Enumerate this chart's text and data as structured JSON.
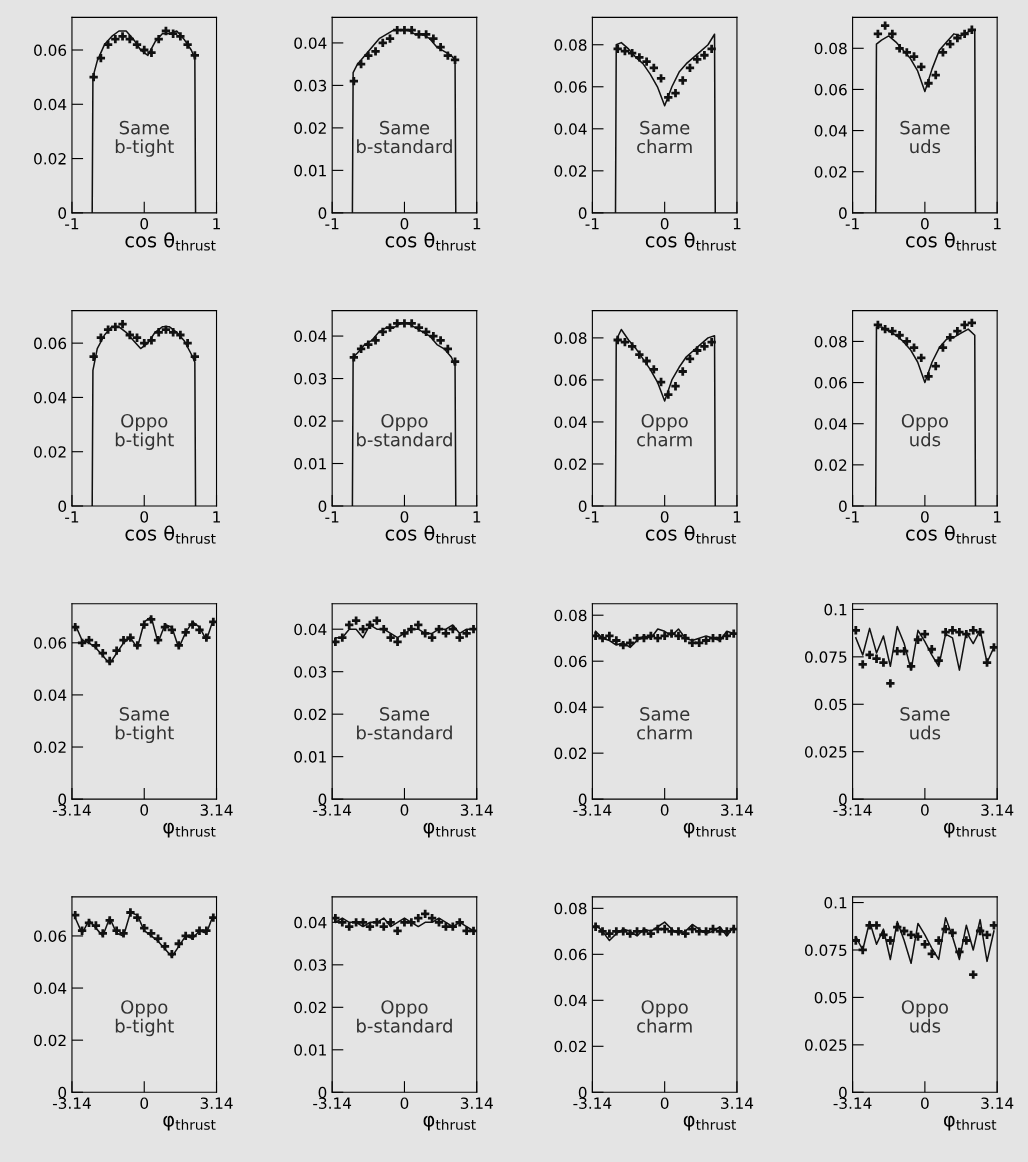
{
  "chart_data": [
    {
      "type": "line",
      "xlabel": "cos θ$_{thrust}$",
      "xlim": [
        -1,
        1
      ],
      "xticks": [
        -1,
        0,
        1
      ],
      "ylim": [
        0,
        0.072
      ],
      "yticks": [
        0,
        0.02,
        0.04,
        0.06
      ],
      "annotations": [
        "Same\nb-tight"
      ],
      "series": [
        {
          "type": "line",
          "color": "#111111",
          "x": [
            -0.72,
            -0.71,
            -0.65,
            -0.55,
            -0.45,
            -0.35,
            -0.25,
            -0.15,
            -0.05,
            0.05,
            0.15,
            0.25,
            0.35,
            0.45,
            0.55,
            0.65,
            0.7,
            0.71
          ],
          "values": [
            0,
            0.05,
            0.056,
            0.062,
            0.065,
            0.067,
            0.067,
            0.064,
            0.06,
            0.058,
            0.063,
            0.066,
            0.066,
            0.067,
            0.064,
            0.06,
            0.057,
            0
          ]
        },
        {
          "type": "scatter",
          "marker": "cross",
          "color": "#111111",
          "x": [
            -0.7,
            -0.6,
            -0.5,
            -0.4,
            -0.3,
            -0.2,
            -0.1,
            0,
            0.1,
            0.2,
            0.3,
            0.4,
            0.5,
            0.6,
            0.7
          ],
          "values": [
            0.05,
            0.057,
            0.062,
            0.064,
            0.065,
            0.064,
            0.062,
            0.06,
            0.059,
            0.064,
            0.067,
            0.066,
            0.065,
            0.062,
            0.058
          ]
        }
      ]
    },
    {
      "type": "line",
      "xlabel": "cos θ$_{thrust}$",
      "xlim": [
        -1,
        1
      ],
      "xticks": [
        -1,
        0,
        1
      ],
      "ylim": [
        0,
        0.072
      ],
      "yticks": [
        0,
        0.02,
        0.04,
        0.06
      ],
      "annotations": [
        "Oppo\nb-tight"
      ],
      "series": [
        {
          "type": "line",
          "color": "#111111",
          "x": [
            -0.72,
            -0.71,
            -0.65,
            -0.55,
            -0.45,
            -0.35,
            -0.25,
            -0.15,
            -0.05,
            0.05,
            0.15,
            0.25,
            0.35,
            0.45,
            0.55,
            0.65,
            0.7,
            0.71
          ],
          "values": [
            0,
            0.05,
            0.058,
            0.063,
            0.066,
            0.066,
            0.064,
            0.061,
            0.058,
            0.06,
            0.064,
            0.066,
            0.066,
            0.064,
            0.061,
            0.056,
            0.053,
            0
          ]
        },
        {
          "type": "scatter",
          "marker": "cross",
          "color": "#111111",
          "x": [
            -0.7,
            -0.6,
            -0.5,
            -0.4,
            -0.3,
            -0.2,
            -0.1,
            0,
            0.1,
            0.2,
            0.3,
            0.4,
            0.5,
            0.6,
            0.7
          ],
          "values": [
            0.055,
            0.062,
            0.065,
            0.066,
            0.067,
            0.063,
            0.062,
            0.06,
            0.061,
            0.064,
            0.065,
            0.064,
            0.063,
            0.06,
            0.055
          ]
        }
      ]
    },
    {
      "type": "line",
      "xlabel": "φ$_{thrust}$",
      "xlim": [
        -3.14,
        3.14
      ],
      "xticks": [
        -3.14,
        0,
        3.14
      ],
      "ylim": [
        0,
        0.075
      ],
      "yticks": [
        0,
        0.02,
        0.04,
        0.06
      ],
      "annotations": [
        "Same\nb-tight"
      ],
      "series": [
        {
          "type": "line",
          "color": "#111111",
          "x": [
            -3.0,
            -2.7,
            -2.4,
            -2.1,
            -1.8,
            -1.5,
            -1.2,
            -0.9,
            -0.6,
            -0.3,
            0,
            0.3,
            0.6,
            0.9,
            1.2,
            1.5,
            1.8,
            2.1,
            2.4,
            2.7,
            3.0
          ],
          "values": [
            0.067,
            0.061,
            0.06,
            0.058,
            0.055,
            0.052,
            0.056,
            0.06,
            0.062,
            0.058,
            0.068,
            0.07,
            0.06,
            0.067,
            0.066,
            0.058,
            0.064,
            0.068,
            0.066,
            0.061,
            0.069
          ]
        },
        {
          "type": "scatter",
          "marker": "cross",
          "color": "#111111",
          "x": [
            -3.0,
            -2.7,
            -2.4,
            -2.1,
            -1.8,
            -1.5,
            -1.2,
            -0.9,
            -0.6,
            -0.3,
            0,
            0.3,
            0.6,
            0.9,
            1.2,
            1.5,
            1.8,
            2.1,
            2.4,
            2.7,
            3.0
          ],
          "values": [
            0.066,
            0.06,
            0.061,
            0.059,
            0.056,
            0.053,
            0.057,
            0.061,
            0.062,
            0.059,
            0.067,
            0.069,
            0.061,
            0.066,
            0.065,
            0.059,
            0.064,
            0.067,
            0.065,
            0.062,
            0.068
          ]
        }
      ]
    },
    {
      "type": "line",
      "xlabel": "φ$_{thrust}$",
      "xlim": [
        -3.14,
        3.14
      ],
      "xticks": [
        -3.14,
        0,
        3.14
      ],
      "ylim": [
        0,
        0.075
      ],
      "yticks": [
        0,
        0.02,
        0.04,
        0.06
      ],
      "annotations": [
        "Oppo\nb-tight"
      ],
      "series": [
        {
          "type": "line",
          "color": "#111111",
          "x": [
            -3.0,
            -2.7,
            -2.4,
            -2.1,
            -1.8,
            -1.5,
            -1.2,
            -0.9,
            -0.6,
            -0.3,
            0,
            0.3,
            0.6,
            0.9,
            1.2,
            1.5,
            1.8,
            2.1,
            2.4,
            2.7,
            3.0
          ],
          "values": [
            0.067,
            0.061,
            0.066,
            0.063,
            0.06,
            0.067,
            0.061,
            0.06,
            0.069,
            0.068,
            0.062,
            0.06,
            0.058,
            0.055,
            0.052,
            0.056,
            0.06,
            0.059,
            0.062,
            0.061,
            0.068
          ]
        },
        {
          "type": "scatter",
          "marker": "cross",
          "color": "#111111",
          "x": [
            -3.0,
            -2.7,
            -2.4,
            -2.1,
            -1.8,
            -1.5,
            -1.2,
            -0.9,
            -0.6,
            -0.3,
            0,
            0.3,
            0.6,
            0.9,
            1.2,
            1.5,
            1.8,
            2.1,
            2.4,
            2.7,
            3.0
          ],
          "values": [
            0.068,
            0.062,
            0.065,
            0.064,
            0.061,
            0.066,
            0.062,
            0.061,
            0.069,
            0.067,
            0.063,
            0.061,
            0.059,
            0.056,
            0.053,
            0.057,
            0.06,
            0.06,
            0.062,
            0.062,
            0.067
          ]
        }
      ]
    },
    {
      "type": "line",
      "xlabel": "cos θ$_{thrust}$",
      "xlim": [
        -1,
        1
      ],
      "xticks": [
        -1,
        0,
        1
      ],
      "ylim": [
        0,
        0.046
      ],
      "yticks": [
        0,
        0.01,
        0.02,
        0.03,
        0.04
      ],
      "annotations": [
        "Same\nb-standard"
      ],
      "series": [
        {
          "type": "line",
          "color": "#111111",
          "x": [
            -0.72,
            -0.71,
            -0.65,
            -0.55,
            -0.45,
            -0.35,
            -0.25,
            -0.15,
            -0.05,
            0.05,
            0.15,
            0.25,
            0.35,
            0.45,
            0.55,
            0.65,
            0.7,
            0.71
          ],
          "values": [
            0,
            0.033,
            0.035,
            0.037,
            0.039,
            0.041,
            0.042,
            0.043,
            0.043,
            0.043,
            0.042,
            0.042,
            0.041,
            0.039,
            0.038,
            0.037,
            0.036,
            0
          ]
        },
        {
          "type": "scatter",
          "marker": "cross",
          "color": "#111111",
          "x": [
            -0.7,
            -0.6,
            -0.5,
            -0.4,
            -0.3,
            -0.2,
            -0.1,
            0,
            0.1,
            0.2,
            0.3,
            0.4,
            0.5,
            0.6,
            0.7
          ],
          "values": [
            0.031,
            0.035,
            0.037,
            0.038,
            0.04,
            0.041,
            0.043,
            0.043,
            0.043,
            0.042,
            0.042,
            0.041,
            0.039,
            0.037,
            0.036
          ]
        }
      ]
    },
    {
      "type": "line",
      "xlabel": "cos θ$_{thrust}$",
      "xlim": [
        -1,
        1
      ],
      "xticks": [
        -1,
        0,
        1
      ],
      "ylim": [
        0,
        0.046
      ],
      "yticks": [
        0,
        0.01,
        0.02,
        0.03,
        0.04
      ],
      "annotations": [
        "Oppo\nb-standard"
      ],
      "series": [
        {
          "type": "line",
          "color": "#111111",
          "x": [
            -0.72,
            -0.71,
            -0.65,
            -0.55,
            -0.45,
            -0.35,
            -0.25,
            -0.15,
            -0.05,
            0.05,
            0.15,
            0.25,
            0.35,
            0.45,
            0.55,
            0.65,
            0.7,
            0.71
          ],
          "values": [
            0,
            0.035,
            0.036,
            0.038,
            0.039,
            0.041,
            0.042,
            0.042,
            0.043,
            0.043,
            0.042,
            0.041,
            0.04,
            0.038,
            0.037,
            0.035,
            0.033,
            0
          ]
        },
        {
          "type": "scatter",
          "marker": "cross",
          "color": "#111111",
          "x": [
            -0.7,
            -0.6,
            -0.5,
            -0.4,
            -0.3,
            -0.2,
            -0.1,
            0,
            0.1,
            0.2,
            0.3,
            0.4,
            0.5,
            0.6,
            0.7
          ],
          "values": [
            0.035,
            0.037,
            0.038,
            0.039,
            0.041,
            0.042,
            0.043,
            0.043,
            0.043,
            0.042,
            0.041,
            0.04,
            0.039,
            0.037,
            0.034
          ]
        }
      ]
    },
    {
      "type": "line",
      "xlabel": "φ$_{thrust}$",
      "xlim": [
        -3.14,
        3.14
      ],
      "xticks": [
        -3.14,
        0,
        3.14
      ],
      "ylim": [
        0,
        0.046
      ],
      "yticks": [
        0,
        0.01,
        0.02,
        0.03,
        0.04
      ],
      "annotations": [
        "Same\nb-standard"
      ],
      "series": [
        {
          "type": "line",
          "color": "#111111",
          "x": [
            -3.0,
            -2.7,
            -2.4,
            -2.1,
            -1.8,
            -1.5,
            -1.2,
            -0.9,
            -0.6,
            -0.3,
            0,
            0.3,
            0.6,
            0.9,
            1.2,
            1.5,
            1.8,
            2.1,
            2.4,
            2.7,
            3.0
          ],
          "values": [
            0.038,
            0.038,
            0.04,
            0.04,
            0.038,
            0.041,
            0.04,
            0.04,
            0.039,
            0.038,
            0.039,
            0.04,
            0.04,
            0.039,
            0.039,
            0.04,
            0.04,
            0.041,
            0.039,
            0.04,
            0.04
          ]
        },
        {
          "type": "scatter",
          "marker": "cross",
          "color": "#111111",
          "x": [
            -3.0,
            -2.7,
            -2.4,
            -2.1,
            -1.8,
            -1.5,
            -1.2,
            -0.9,
            -0.6,
            -0.3,
            0,
            0.3,
            0.6,
            0.9,
            1.2,
            1.5,
            1.8,
            2.1,
            2.4,
            2.7,
            3.0
          ],
          "values": [
            0.037,
            0.038,
            0.041,
            0.042,
            0.04,
            0.041,
            0.042,
            0.04,
            0.038,
            0.037,
            0.039,
            0.04,
            0.041,
            0.039,
            0.038,
            0.04,
            0.039,
            0.04,
            0.038,
            0.039,
            0.04
          ]
        }
      ]
    },
    {
      "type": "line",
      "xlabel": "φ$_{thrust}$",
      "xlim": [
        -3.14,
        3.14
      ],
      "xticks": [
        -3.14,
        0,
        3.14
      ],
      "ylim": [
        0,
        0.046
      ],
      "yticks": [
        0,
        0.01,
        0.02,
        0.03,
        0.04
      ],
      "annotations": [
        "Oppo\nb-standard"
      ],
      "series": [
        {
          "type": "line",
          "color": "#111111",
          "x": [
            -3.0,
            -2.7,
            -2.4,
            -2.1,
            -1.8,
            -1.5,
            -1.2,
            -0.9,
            -0.6,
            -0.3,
            0,
            0.3,
            0.6,
            0.9,
            1.2,
            1.5,
            1.8,
            2.1,
            2.4,
            2.7,
            3.0
          ],
          "values": [
            0.04,
            0.041,
            0.04,
            0.04,
            0.039,
            0.04,
            0.04,
            0.041,
            0.039,
            0.04,
            0.041,
            0.04,
            0.039,
            0.04,
            0.04,
            0.041,
            0.04,
            0.039,
            0.04,
            0.039,
            0.038
          ]
        },
        {
          "type": "scatter",
          "marker": "cross",
          "color": "#111111",
          "x": [
            -3.0,
            -2.7,
            -2.4,
            -2.1,
            -1.8,
            -1.5,
            -1.2,
            -0.9,
            -0.6,
            -0.3,
            0,
            0.3,
            0.6,
            0.9,
            1.2,
            1.5,
            1.8,
            2.1,
            2.4,
            2.7,
            3.0
          ],
          "values": [
            0.041,
            0.04,
            0.039,
            0.04,
            0.04,
            0.039,
            0.04,
            0.039,
            0.04,
            0.038,
            0.04,
            0.04,
            0.041,
            0.042,
            0.041,
            0.04,
            0.039,
            0.039,
            0.04,
            0.038,
            0.038
          ]
        }
      ]
    },
    {
      "type": "line",
      "xlabel": "cos θ$_{thrust}$",
      "xlim": [
        -1,
        1
      ],
      "xticks": [
        -1,
        0,
        1
      ],
      "ylim": [
        0,
        0.093
      ],
      "yticks": [
        0,
        0.02,
        0.04,
        0.06,
        0.08
      ],
      "annotations": [
        "Same\ncharm"
      ],
      "series": [
        {
          "type": "line",
          "color": "#111111",
          "x": [
            -0.68,
            -0.67,
            -0.6,
            -0.5,
            -0.4,
            -0.3,
            -0.2,
            -0.1,
            0,
            0.1,
            0.2,
            0.3,
            0.4,
            0.5,
            0.6,
            0.69,
            0.7
          ],
          "values": [
            0,
            0.08,
            0.081,
            0.078,
            0.074,
            0.071,
            0.066,
            0.06,
            0.051,
            0.06,
            0.067,
            0.071,
            0.074,
            0.077,
            0.08,
            0.085,
            0
          ]
        },
        {
          "type": "scatter",
          "marker": "cross",
          "color": "#111111",
          "x": [
            -0.65,
            -0.55,
            -0.45,
            -0.35,
            -0.25,
            -0.15,
            -0.05,
            0.05,
            0.15,
            0.25,
            0.35,
            0.45,
            0.55,
            0.65
          ],
          "values": [
            0.078,
            0.077,
            0.076,
            0.074,
            0.072,
            0.069,
            0.064,
            0.055,
            0.057,
            0.063,
            0.069,
            0.073,
            0.075,
            0.078
          ]
        }
      ]
    },
    {
      "type": "line",
      "xlabel": "cos θ$_{thrust}$",
      "xlim": [
        -1,
        1
      ],
      "xticks": [
        -1,
        0,
        1
      ],
      "ylim": [
        0,
        0.093
      ],
      "yticks": [
        0,
        0.02,
        0.04,
        0.06,
        0.08
      ],
      "annotations": [
        "Oppo\ncharm"
      ],
      "series": [
        {
          "type": "line",
          "color": "#111111",
          "x": [
            -0.68,
            -0.67,
            -0.6,
            -0.5,
            -0.4,
            -0.3,
            -0.2,
            -0.1,
            0,
            0.1,
            0.2,
            0.3,
            0.4,
            0.5,
            0.6,
            0.69,
            0.7
          ],
          "values": [
            0,
            0.079,
            0.084,
            0.079,
            0.075,
            0.07,
            0.065,
            0.059,
            0.05,
            0.06,
            0.066,
            0.071,
            0.074,
            0.077,
            0.08,
            0.081,
            0
          ]
        },
        {
          "type": "scatter",
          "marker": "cross",
          "color": "#111111",
          "x": [
            -0.65,
            -0.55,
            -0.45,
            -0.35,
            -0.25,
            -0.15,
            -0.05,
            0.05,
            0.15,
            0.25,
            0.35,
            0.45,
            0.55,
            0.65
          ],
          "values": [
            0.079,
            0.078,
            0.076,
            0.072,
            0.069,
            0.065,
            0.059,
            0.053,
            0.057,
            0.064,
            0.07,
            0.074,
            0.076,
            0.078
          ]
        }
      ]
    },
    {
      "type": "line",
      "xlabel": "φ$_{thrust}$",
      "xlim": [
        -3.14,
        3.14
      ],
      "xticks": [
        -3.14,
        0,
        3.14
      ],
      "ylim": [
        0,
        0.085
      ],
      "yticks": [
        0,
        0.02,
        0.04,
        0.06,
        0.08
      ],
      "annotations": [
        "Same\ncharm"
      ],
      "series": [
        {
          "type": "line",
          "color": "#111111",
          "x": [
            -3.0,
            -2.7,
            -2.4,
            -2.1,
            -1.8,
            -1.5,
            -1.2,
            -0.9,
            -0.6,
            -0.3,
            0,
            0.3,
            0.6,
            0.9,
            1.2,
            1.5,
            1.8,
            2.1,
            2.4,
            2.7,
            3.0
          ],
          "values": [
            0.073,
            0.07,
            0.069,
            0.067,
            0.068,
            0.066,
            0.069,
            0.071,
            0.07,
            0.074,
            0.073,
            0.071,
            0.074,
            0.07,
            0.069,
            0.07,
            0.071,
            0.07,
            0.069,
            0.073,
            0.072
          ]
        },
        {
          "type": "scatter",
          "marker": "cross",
          "color": "#111111",
          "x": [
            -3.0,
            -2.7,
            -2.4,
            -2.1,
            -1.8,
            -1.5,
            -1.2,
            -0.9,
            -0.6,
            -0.3,
            0,
            0.3,
            0.6,
            0.9,
            1.2,
            1.5,
            1.8,
            2.1,
            2.4,
            2.7,
            3.0
          ],
          "values": [
            0.071,
            0.07,
            0.071,
            0.069,
            0.067,
            0.068,
            0.07,
            0.07,
            0.071,
            0.07,
            0.071,
            0.072,
            0.071,
            0.07,
            0.068,
            0.068,
            0.069,
            0.07,
            0.07,
            0.071,
            0.072
          ]
        }
      ]
    },
    {
      "type": "line",
      "xlabel": "φ$_{thrust}$",
      "xlim": [
        -3.14,
        3.14
      ],
      "xticks": [
        -3.14,
        0,
        3.14
      ],
      "ylim": [
        0,
        0.085
      ],
      "yticks": [
        0,
        0.02,
        0.04,
        0.06,
        0.08
      ],
      "annotations": [
        "Oppo\ncharm"
      ],
      "series": [
        {
          "type": "line",
          "color": "#111111",
          "x": [
            -3.0,
            -2.7,
            -2.4,
            -2.1,
            -1.8,
            -1.5,
            -1.2,
            -0.9,
            -0.6,
            -0.3,
            0,
            0.3,
            0.6,
            0.9,
            1.2,
            1.5,
            1.8,
            2.1,
            2.4,
            2.7,
            3.0
          ],
          "values": [
            0.073,
            0.07,
            0.066,
            0.069,
            0.071,
            0.07,
            0.068,
            0.071,
            0.07,
            0.072,
            0.074,
            0.071,
            0.069,
            0.07,
            0.073,
            0.071,
            0.069,
            0.07,
            0.072,
            0.068,
            0.072
          ]
        },
        {
          "type": "scatter",
          "marker": "cross",
          "color": "#111111",
          "x": [
            -3.0,
            -2.7,
            -2.4,
            -2.1,
            -1.8,
            -1.5,
            -1.2,
            -0.9,
            -0.6,
            -0.3,
            0,
            0.3,
            0.6,
            0.9,
            1.2,
            1.5,
            1.8,
            2.1,
            2.4,
            2.7,
            3.0
          ],
          "values": [
            0.072,
            0.07,
            0.069,
            0.07,
            0.07,
            0.069,
            0.07,
            0.07,
            0.069,
            0.071,
            0.071,
            0.07,
            0.07,
            0.069,
            0.071,
            0.07,
            0.07,
            0.071,
            0.07,
            0.07,
            0.071
          ]
        }
      ]
    },
    {
      "type": "line",
      "xlabel": "cos θ$_{thrust}$",
      "xlim": [
        -1,
        1
      ],
      "xticks": [
        -1,
        0,
        1
      ],
      "ylim": [
        0,
        0.095
      ],
      "yticks": [
        0,
        0.02,
        0.04,
        0.06,
        0.08
      ],
      "annotations": [
        "Same\nuds"
      ],
      "series": [
        {
          "type": "line",
          "color": "#111111",
          "x": [
            -0.68,
            -0.67,
            -0.6,
            -0.5,
            -0.4,
            -0.3,
            -0.2,
            -0.1,
            0,
            0.1,
            0.2,
            0.3,
            0.4,
            0.5,
            0.6,
            0.69,
            0.7
          ],
          "values": [
            0,
            0.082,
            0.084,
            0.086,
            0.083,
            0.079,
            0.075,
            0.069,
            0.059,
            0.07,
            0.079,
            0.083,
            0.087,
            0.086,
            0.088,
            0.089,
            0
          ]
        },
        {
          "type": "scatter",
          "marker": "cross",
          "color": "#111111",
          "x": [
            -0.65,
            -0.55,
            -0.45,
            -0.35,
            -0.25,
            -0.15,
            -0.05,
            0.05,
            0.15,
            0.25,
            0.35,
            0.45,
            0.55,
            0.65
          ],
          "values": [
            0.087,
            0.091,
            0.087,
            0.08,
            0.078,
            0.076,
            0.071,
            0.063,
            0.067,
            0.078,
            0.082,
            0.085,
            0.087,
            0.089
          ]
        }
      ]
    },
    {
      "type": "line",
      "xlabel": "cos θ$_{thrust}$",
      "xlim": [
        -1,
        1
      ],
      "xticks": [
        -1,
        0,
        1
      ],
      "ylim": [
        0,
        0.095
      ],
      "yticks": [
        0,
        0.02,
        0.04,
        0.06,
        0.08
      ],
      "annotations": [
        "Oppo\nuds"
      ],
      "series": [
        {
          "type": "line",
          "color": "#111111",
          "x": [
            -0.68,
            -0.67,
            -0.6,
            -0.5,
            -0.4,
            -0.3,
            -0.2,
            -0.1,
            0,
            0.1,
            0.2,
            0.3,
            0.4,
            0.5,
            0.6,
            0.69,
            0.7
          ],
          "values": [
            0,
            0.087,
            0.087,
            0.085,
            0.083,
            0.08,
            0.076,
            0.07,
            0.06,
            0.07,
            0.077,
            0.081,
            0.082,
            0.084,
            0.086,
            0.083,
            0
          ]
        },
        {
          "type": "scatter",
          "marker": "cross",
          "color": "#111111",
          "x": [
            -0.65,
            -0.55,
            -0.45,
            -0.35,
            -0.25,
            -0.15,
            -0.05,
            0.05,
            0.15,
            0.25,
            0.35,
            0.45,
            0.55,
            0.65
          ],
          "values": [
            0.088,
            0.086,
            0.085,
            0.083,
            0.08,
            0.077,
            0.072,
            0.063,
            0.068,
            0.077,
            0.082,
            0.085,
            0.088,
            0.089
          ]
        }
      ]
    },
    {
      "type": "line",
      "xlabel": "φ$_{thrust}$",
      "xlim": [
        -3.14,
        3.14
      ],
      "xticks": [
        {
          "value": -3.14,
          "label": "-3:14"
        },
        0,
        3.14
      ],
      "ylim": [
        0,
        0.103
      ],
      "yticks": [
        0,
        0.025,
        0.05,
        0.075,
        0.1
      ],
      "annotations": [
        "Same\nuds"
      ],
      "series": [
        {
          "type": "line",
          "color": "#111111",
          "x": [
            -3.0,
            -2.7,
            -2.4,
            -2.1,
            -1.8,
            -1.5,
            -1.2,
            -0.9,
            -0.6,
            -0.3,
            0,
            0.3,
            0.6,
            0.9,
            1.2,
            1.5,
            1.8,
            2.1,
            2.4,
            2.7,
            3.0
          ],
          "values": [
            0.085,
            0.076,
            0.09,
            0.077,
            0.086,
            0.07,
            0.091,
            0.082,
            0.068,
            0.089,
            0.083,
            0.076,
            0.07,
            0.087,
            0.085,
            0.068,
            0.088,
            0.082,
            0.089,
            0.072,
            0.08
          ]
        },
        {
          "type": "scatter",
          "marker": "cross",
          "color": "#111111",
          "x": [
            -3.0,
            -2.7,
            -2.4,
            -2.1,
            -1.8,
            -1.5,
            -1.2,
            -0.9,
            -0.6,
            -0.3,
            0,
            0.3,
            0.6,
            0.9,
            1.2,
            1.5,
            1.8,
            2.1,
            2.4,
            2.7,
            3.0
          ],
          "values": [
            0.089,
            0.071,
            0.076,
            0.074,
            0.072,
            0.061,
            0.078,
            0.078,
            0.07,
            0.084,
            0.087,
            0.079,
            0.073,
            0.088,
            0.089,
            0.088,
            0.087,
            0.089,
            0.088,
            0.072,
            0.08
          ]
        }
      ]
    },
    {
      "type": "line",
      "xlabel": "φ$_{thrust}$",
      "xlim": [
        -3.14,
        3.14
      ],
      "xticks": [
        -3.14,
        0,
        3.14
      ],
      "ylim": [
        0,
        0.103
      ],
      "yticks": [
        0,
        0.025,
        0.05,
        0.075,
        0.1
      ],
      "annotations": [
        "Oppo\nuds"
      ],
      "series": [
        {
          "type": "line",
          "color": "#111111",
          "x": [
            -3.0,
            -2.7,
            -2.4,
            -2.1,
            -1.8,
            -1.5,
            -1.2,
            -0.9,
            -0.6,
            -0.3,
            0,
            0.3,
            0.6,
            0.9,
            1.2,
            1.5,
            1.8,
            2.1,
            2.4,
            2.7,
            3.0
          ],
          "values": [
            0.082,
            0.075,
            0.09,
            0.078,
            0.086,
            0.07,
            0.09,
            0.08,
            0.068,
            0.089,
            0.083,
            0.076,
            0.07,
            0.092,
            0.082,
            0.07,
            0.088,
            0.075,
            0.091,
            0.069,
            0.085
          ]
        },
        {
          "type": "scatter",
          "marker": "cross",
          "color": "#111111",
          "x": [
            -3.0,
            -2.7,
            -2.4,
            -2.1,
            -1.8,
            -1.5,
            -1.2,
            -0.9,
            -0.6,
            -0.3,
            0,
            0.3,
            0.6,
            0.9,
            1.2,
            1.5,
            1.8,
            2.1,
            2.4,
            2.7,
            3.0
          ],
          "values": [
            0.08,
            0.075,
            0.088,
            0.088,
            0.083,
            0.08,
            0.087,
            0.085,
            0.083,
            0.082,
            0.078,
            0.073,
            0.08,
            0.086,
            0.084,
            0.074,
            0.08,
            0.062,
            0.085,
            0.083,
            0.088
          ]
        }
      ]
    }
  ]
}
